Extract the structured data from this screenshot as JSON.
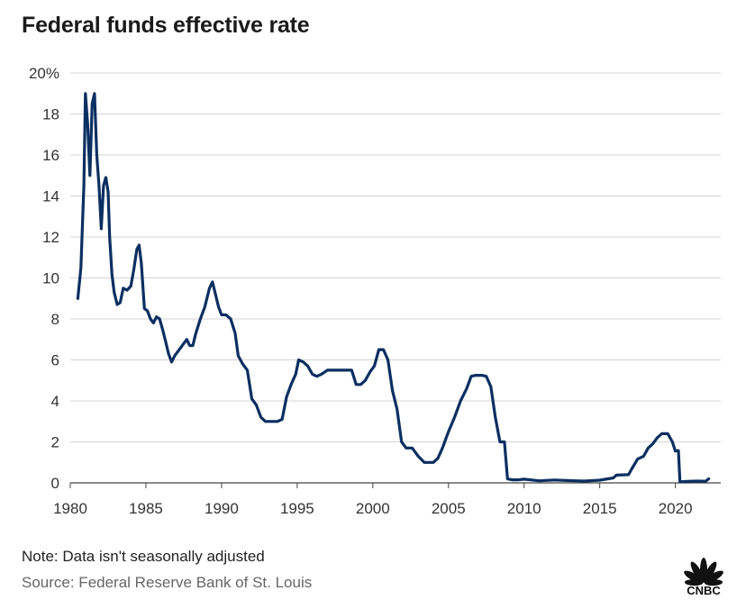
{
  "title": "Federal funds effective rate",
  "note": "Note: Data isn't seasonally adjusted",
  "source": "Source: Federal Reserve Bank of St. Louis",
  "logo": {
    "text": "CNBC",
    "icon": "peacock-icon"
  },
  "colors": {
    "line": "#0b2f61",
    "grid": "#d4d4d4",
    "axis": "#444444"
  },
  "chart_data": {
    "type": "line",
    "title": "Federal funds effective rate",
    "xlabel": "",
    "ylabel": "",
    "xlim": [
      1980,
      2023
    ],
    "ylim": [
      0,
      20
    ],
    "y_ticks": [
      0,
      2,
      4,
      6,
      8,
      10,
      12,
      14,
      16,
      18,
      20
    ],
    "y_tick_labels": [
      "0",
      "2",
      "4",
      "6",
      "8",
      "10",
      "12",
      "14",
      "16",
      "18",
      "20%"
    ],
    "x_ticks": [
      1980,
      1985,
      1990,
      1995,
      2000,
      2005,
      2010,
      2015,
      2020
    ],
    "x_tick_labels": [
      "1980",
      "1985",
      "1990",
      "1995",
      "2000",
      "2005",
      "2010",
      "2015",
      "2020"
    ],
    "grid": true,
    "series": [
      {
        "name": "Federal funds effective rate",
        "x": [
          1980.5,
          1980.7,
          1980.9,
          1981.0,
          1981.15,
          1981.3,
          1981.45,
          1981.6,
          1981.75,
          1981.9,
          1982.05,
          1982.2,
          1982.35,
          1982.5,
          1982.6,
          1982.75,
          1982.9,
          1983.1,
          1983.3,
          1983.5,
          1983.75,
          1984.0,
          1984.2,
          1984.4,
          1984.55,
          1984.7,
          1984.9,
          1985.1,
          1985.3,
          1985.5,
          1985.7,
          1985.9,
          1986.1,
          1986.3,
          1986.5,
          1986.7,
          1986.9,
          1987.1,
          1987.3,
          1987.5,
          1987.7,
          1987.9,
          1988.1,
          1988.3,
          1988.6,
          1988.9,
          1989.2,
          1989.4,
          1989.6,
          1989.8,
          1990.0,
          1990.3,
          1990.6,
          1990.9,
          1991.1,
          1991.4,
          1991.7,
          1992.0,
          1992.3,
          1992.6,
          1992.9,
          1993.3,
          1993.7,
          1994.0,
          1994.3,
          1994.6,
          1994.9,
          1995.1,
          1995.4,
          1995.7,
          1996.0,
          1996.3,
          1996.6,
          1997.0,
          1997.3,
          1997.6,
          1998.0,
          1998.3,
          1998.6,
          1998.9,
          1999.2,
          1999.5,
          1999.8,
          2000.1,
          2000.4,
          2000.7,
          2001.0,
          2001.3,
          2001.6,
          2001.9,
          2002.2,
          2002.6,
          2003.0,
          2003.4,
          2003.7,
          2004.0,
          2004.3,
          2004.6,
          2005.0,
          2005.4,
          2005.8,
          2006.2,
          2006.5,
          2006.8,
          2007.2,
          2007.5,
          2007.8,
          2008.1,
          2008.4,
          2008.7,
          2008.9,
          2009.2,
          2009.6,
          2010.0,
          2011.0,
          2012.0,
          2013.0,
          2014.0,
          2015.0,
          2015.9,
          2016.1,
          2016.9,
          2017.1,
          2017.5,
          2017.9,
          2018.2,
          2018.5,
          2018.8,
          2019.1,
          2019.5,
          2019.8,
          2020.0,
          2020.2,
          2020.3,
          2020.5,
          2021.0,
          2021.5,
          2022.0,
          2022.2
        ],
        "values": [
          9.0,
          10.5,
          14.5,
          19.0,
          17.5,
          15.0,
          18.5,
          19.0,
          16.0,
          14.5,
          12.4,
          14.5,
          14.9,
          14.2,
          12.0,
          10.2,
          9.3,
          8.7,
          8.8,
          9.5,
          9.4,
          9.6,
          10.4,
          11.4,
          11.6,
          10.7,
          8.5,
          8.4,
          8.0,
          7.8,
          8.1,
          8.0,
          7.5,
          6.9,
          6.3,
          5.9,
          6.2,
          6.4,
          6.6,
          6.8,
          7.0,
          6.7,
          6.7,
          7.3,
          8.0,
          8.6,
          9.5,
          9.8,
          9.2,
          8.6,
          8.2,
          8.2,
          8.0,
          7.3,
          6.2,
          5.8,
          5.5,
          4.1,
          3.8,
          3.2,
          3.0,
          3.0,
          3.0,
          3.1,
          4.2,
          4.8,
          5.3,
          6.0,
          5.9,
          5.7,
          5.3,
          5.2,
          5.3,
          5.5,
          5.5,
          5.5,
          5.5,
          5.5,
          5.5,
          4.8,
          4.8,
          5.0,
          5.4,
          5.7,
          6.5,
          6.5,
          6.0,
          4.5,
          3.6,
          2.0,
          1.7,
          1.7,
          1.3,
          1.0,
          1.0,
          1.0,
          1.2,
          1.7,
          2.5,
          3.2,
          4.0,
          4.6,
          5.2,
          5.25,
          5.25,
          5.2,
          4.7,
          3.2,
          2.0,
          2.0,
          0.2,
          0.15,
          0.15,
          0.18,
          0.1,
          0.14,
          0.11,
          0.09,
          0.13,
          0.24,
          0.38,
          0.4,
          0.66,
          1.16,
          1.3,
          1.7,
          1.9,
          2.2,
          2.4,
          2.4,
          2.0,
          1.55,
          1.58,
          0.05,
          0.06,
          0.08,
          0.09,
          0.08,
          0.2
        ]
      }
    ]
  }
}
